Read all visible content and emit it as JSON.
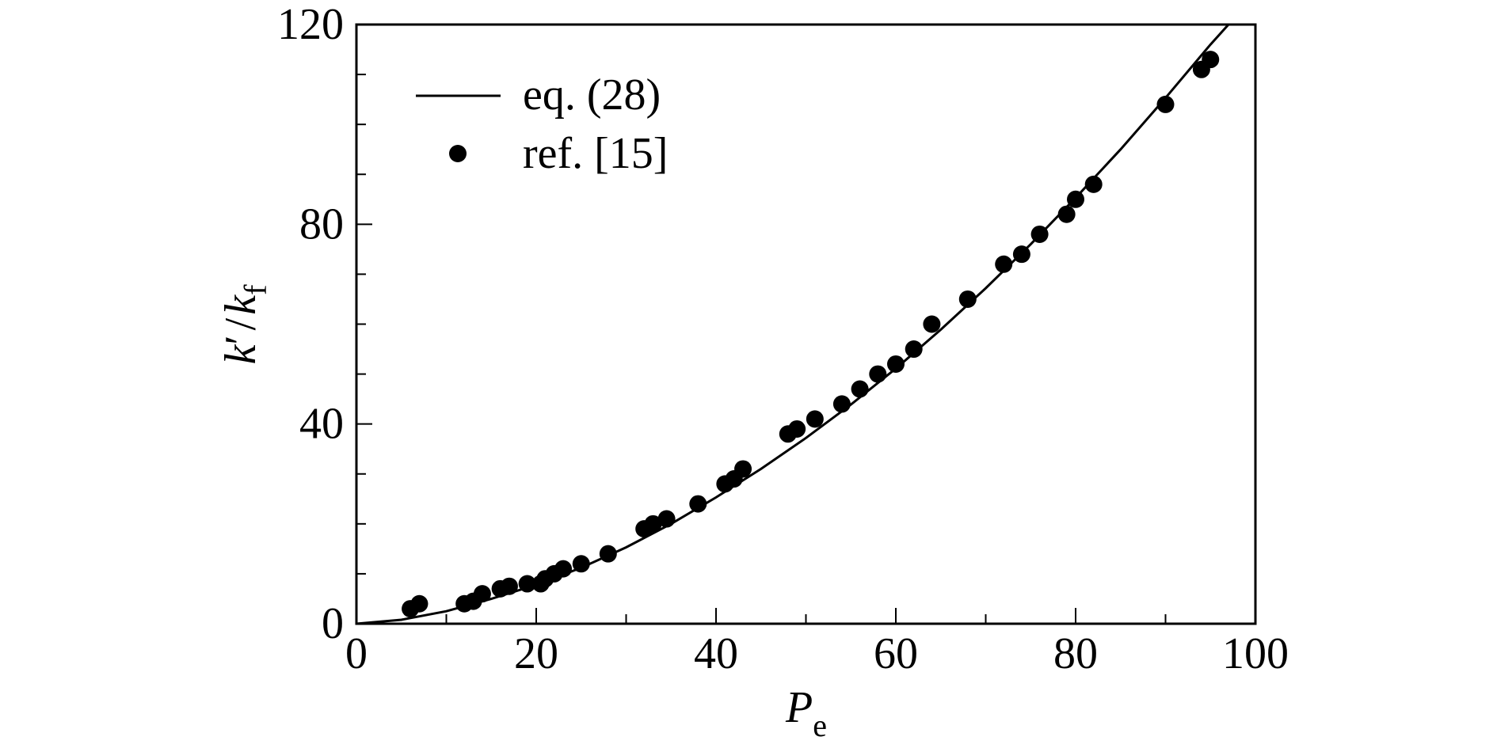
{
  "chart_data": {
    "type": "scatter",
    "xlabel": {
      "main": "P",
      "sub": "e"
    },
    "ylabel": {
      "k": "k",
      "prime": "′",
      "slash": "/",
      "k2": "k",
      "sub": "f"
    },
    "xlim": [
      0,
      100
    ],
    "ylim": [
      0,
      120
    ],
    "xticks": [
      "0",
      "20",
      "40",
      "60",
      "80",
      "100"
    ],
    "yticks": [
      "0",
      "40",
      "80",
      "120"
    ],
    "x_minor_step": 10,
    "y_minor_step": 10,
    "grid": false,
    "legend_position": "top-left",
    "series": [
      {
        "name": "eq. (28)",
        "kind": "line",
        "color": "#000000",
        "x": [
          0,
          5,
          10,
          15,
          20,
          25,
          30,
          35,
          40,
          45,
          50,
          55,
          60,
          65,
          70,
          75,
          80,
          85,
          90,
          95,
          97
        ],
        "y": [
          0,
          0.8,
          2.5,
          5.0,
          7.8,
          11.2,
          15.3,
          20.0,
          25.3,
          31.0,
          37.2,
          43.9,
          51.1,
          58.9,
          67.2,
          76.0,
          85.3,
          95.0,
          105.3,
          116.0,
          120.0
        ]
      },
      {
        "name": "ref. [15]",
        "kind": "scatter",
        "color": "#000000",
        "x": [
          6,
          7,
          12,
          13,
          14,
          16,
          17,
          19,
          20.5,
          21,
          22,
          23,
          25,
          28,
          32,
          33,
          34.5,
          38,
          41,
          42,
          43,
          48,
          49,
          51,
          54,
          56,
          58,
          60,
          62,
          64,
          68,
          72,
          74,
          76,
          79,
          80,
          82,
          90,
          94,
          95
        ],
        "y": [
          3,
          4,
          4,
          4.5,
          6,
          7,
          7.5,
          8,
          8,
          9,
          10,
          11,
          12,
          14,
          19,
          20,
          21,
          24,
          28,
          29,
          31,
          38,
          39,
          41,
          44,
          47,
          50,
          52,
          55,
          60,
          65,
          72,
          74,
          78,
          82,
          85,
          88,
          104,
          111,
          113
        ]
      }
    ]
  }
}
